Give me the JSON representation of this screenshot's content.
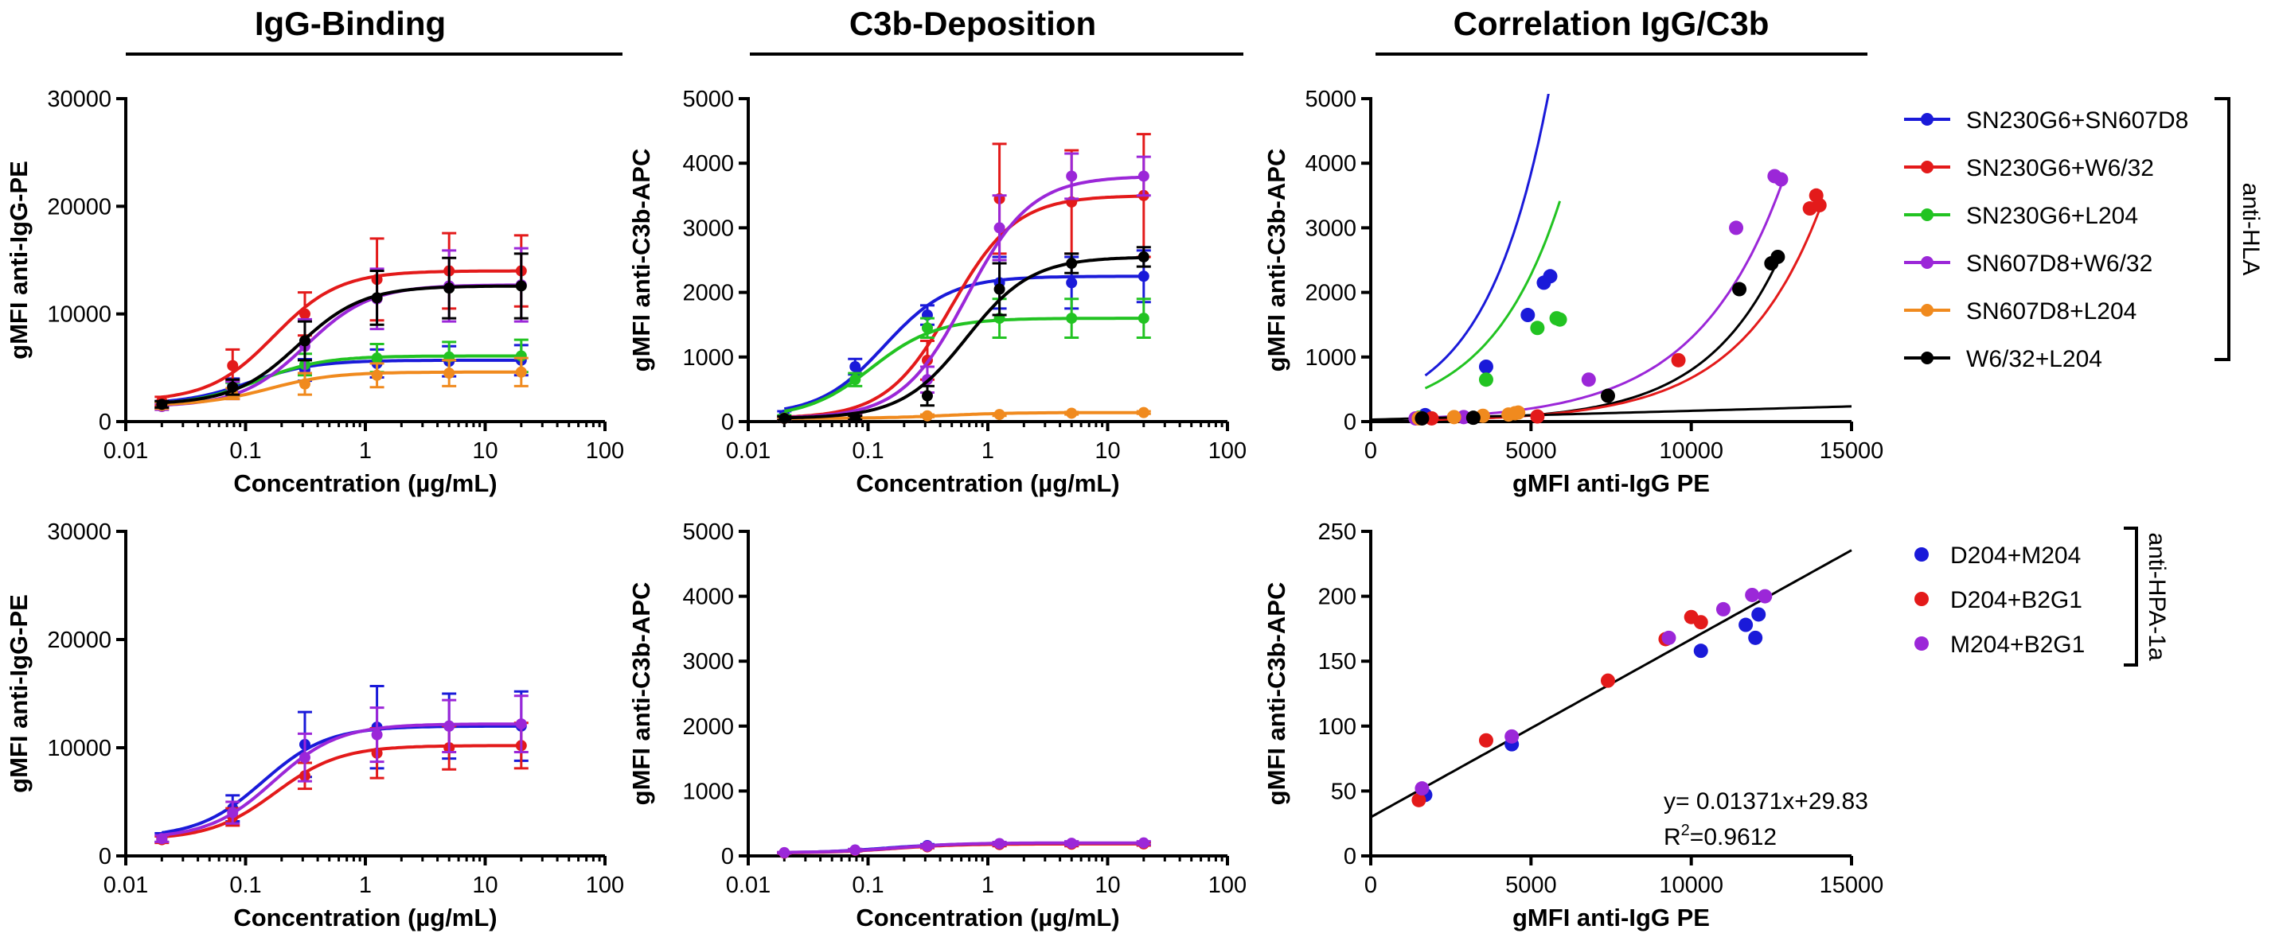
{
  "headers": [
    "IgG-Binding",
    "C3b-Deposition",
    "Correlation IgG/C3b"
  ],
  "legend_hla": {
    "group_label": "anti-HLA",
    "entries": [
      {
        "name": "SN230G6+SN607D8",
        "color": "#1a1ad9"
      },
      {
        "name": "SN230G6+W6/32",
        "color": "#e31a1a"
      },
      {
        "name": "SN230G6+L204",
        "color": "#22c322"
      },
      {
        "name": "SN607D8+W6/32",
        "color": "#9b27d8"
      },
      {
        "name": "SN607D8+L204",
        "color": "#f08a1e"
      },
      {
        "name": "W6/32+L204",
        "color": "#000000"
      }
    ]
  },
  "legend_hpa": {
    "group_label": "anti-HPA-1a",
    "entries": [
      {
        "name": "D204+M204",
        "color": "#1a1ad9"
      },
      {
        "name": "D204+B2G1",
        "color": "#e31a1a"
      },
      {
        "name": "M204+B2G1",
        "color": "#9b27d8"
      }
    ]
  },
  "chart_data": [
    {
      "id": "hla-igg",
      "type": "line",
      "xscale": "log",
      "xlim": [
        0.01,
        100
      ],
      "ylim": [
        0,
        30000
      ],
      "xticks": [
        "0.01",
        "0.1",
        "1",
        "10",
        "100"
      ],
      "yticks": [
        "0",
        "10000",
        "20000",
        "30000"
      ],
      "xlabel": "Concentration (µg/mL)",
      "ylabel": "gMFI anti-IgG-PE",
      "x": [
        0.02,
        0.078,
        0.3125,
        1.25,
        5,
        20
      ],
      "series": [
        {
          "name": "SN230G6+SN607D8",
          "color": "#1a1ad9",
          "values": [
            1600,
            3300,
            4800,
            5400,
            5600,
            5700
          ],
          "errors": [
            300,
            700,
            1000,
            1300,
            1400,
            1400
          ]
        },
        {
          "name": "SN230G6+W6/32",
          "color": "#e31a1a",
          "values": [
            1900,
            5200,
            10000,
            13200,
            14000,
            14000
          ],
          "errors": [
            400,
            1500,
            2000,
            3800,
            3500,
            3300
          ]
        },
        {
          "name": "SN230G6+L204",
          "color": "#22c322",
          "values": [
            1500,
            3000,
            5300,
            5900,
            6000,
            6100
          ],
          "errors": [
            300,
            600,
            1000,
            1300,
            1400,
            1500
          ]
        },
        {
          "name": "SN607D8+W6/32",
          "color": "#9b27d8",
          "values": [
            1400,
            2900,
            7000,
            11400,
            12600,
            12700
          ],
          "errors": [
            300,
            800,
            2500,
            2800,
            3300,
            3400
          ]
        },
        {
          "name": "SN607D8+L204",
          "color": "#f08a1e",
          "values": [
            1500,
            2600,
            3500,
            4300,
            4500,
            4600
          ],
          "errors": [
            300,
            500,
            1000,
            1100,
            1200,
            1300
          ]
        },
        {
          "name": "W6/32+L204",
          "color": "#000000",
          "values": [
            1600,
            3200,
            7500,
            11500,
            12400,
            12600
          ],
          "errors": [
            300,
            700,
            1800,
            2500,
            2800,
            3000
          ]
        }
      ]
    },
    {
      "id": "hla-c3b",
      "type": "line",
      "xscale": "log",
      "xlim": [
        0.01,
        100
      ],
      "ylim": [
        0,
        5000
      ],
      "xticks": [
        "0.01",
        "0.1",
        "1",
        "10",
        "100"
      ],
      "yticks": [
        "0",
        "1000",
        "2000",
        "3000",
        "4000",
        "5000"
      ],
      "xlabel": "Concentration (µg/mL)",
      "ylabel": "gMFI anti-C3b-APC",
      "x": [
        0.02,
        0.078,
        0.3125,
        1.25,
        5,
        20
      ],
      "series": [
        {
          "name": "SN230G6+SN607D8",
          "color": "#1a1ad9",
          "values": [
            100,
            850,
            1650,
            2150,
            2150,
            2250
          ],
          "errors": [
            60,
            120,
            150,
            400,
            400,
            400
          ]
        },
        {
          "name": "SN230G6+W6/32",
          "color": "#e31a1a",
          "values": [
            50,
            80,
            950,
            3450,
            3400,
            3500
          ],
          "errors": [
            30,
            50,
            300,
            850,
            800,
            950
          ]
        },
        {
          "name": "SN230G6+L204",
          "color": "#22c322",
          "values": [
            60,
            650,
            1450,
            1600,
            1600,
            1600
          ],
          "errors": [
            40,
            100,
            150,
            300,
            300,
            300
          ]
        },
        {
          "name": "SN607D8+W6/32",
          "color": "#9b27d8",
          "values": [
            50,
            70,
            650,
            3000,
            3800,
            3800
          ],
          "errors": [
            30,
            40,
            200,
            500,
            350,
            300
          ]
        },
        {
          "name": "SN607D8+L204",
          "color": "#f08a1e",
          "values": [
            50,
            70,
            90,
            110,
            130,
            140
          ],
          "errors": [
            20,
            20,
            20,
            20,
            20,
            20
          ]
        },
        {
          "name": "W6/32+L204",
          "color": "#000000",
          "values": [
            50,
            60,
            400,
            2050,
            2450,
            2550
          ],
          "errors": [
            30,
            30,
            150,
            400,
            150,
            150
          ]
        }
      ]
    },
    {
      "id": "hla-corr",
      "type": "scatter",
      "xlim": [
        0,
        15000
      ],
      "ylim": [
        0,
        5000
      ],
      "xticks": [
        "0",
        "5000",
        "10000",
        "15000"
      ],
      "yticks": [
        "0",
        "1000",
        "2000",
        "3000",
        "4000",
        "5000"
      ],
      "xlabel": "gMFI anti-IgG PE",
      "ylabel": "gMFI anti-C3b-APC",
      "series": [
        {
          "name": "SN230G6+SN607D8",
          "color": "#1a1ad9",
          "points": [
            [
              1700,
              100
            ],
            [
              3600,
              850
            ],
            [
              4900,
              1650
            ],
            [
              5400,
              2150
            ],
            [
              5600,
              2250
            ]
          ]
        },
        {
          "name": "SN230G6+W6/32",
          "color": "#e31a1a",
          "points": [
            [
              1900,
              50
            ],
            [
              5200,
              80
            ],
            [
              9600,
              950
            ],
            [
              13700,
              3300
            ],
            [
              13900,
              3500
            ],
            [
              14000,
              3350
            ]
          ]
        },
        {
          "name": "SN230G6+L204",
          "color": "#22c322",
          "points": [
            [
              1500,
              60
            ],
            [
              3600,
              650
            ],
            [
              5200,
              1450
            ],
            [
              5800,
              1600
            ],
            [
              5900,
              1580
            ]
          ]
        },
        {
          "name": "SN607D8+W6/32",
          "color": "#9b27d8",
          "points": [
            [
              1400,
              50
            ],
            [
              2900,
              70
            ],
            [
              6800,
              650
            ],
            [
              11400,
              3000
            ],
            [
              12600,
              3800
            ],
            [
              12800,
              3750
            ]
          ]
        },
        {
          "name": "SN607D8+L204",
          "color": "#f08a1e",
          "points": [
            [
              1500,
              50
            ],
            [
              2600,
              70
            ],
            [
              3500,
              90
            ],
            [
              4300,
              110
            ],
            [
              4500,
              130
            ],
            [
              4600,
              140
            ]
          ]
        },
        {
          "name": "W6/32+L204",
          "color": "#000000",
          "points": [
            [
              1600,
              50
            ],
            [
              3200,
              60
            ],
            [
              7400,
              400
            ],
            [
              11500,
              2050
            ],
            [
              12500,
              2450
            ],
            [
              12700,
              2550
            ]
          ]
        }
      ],
      "fits": [
        {
          "color": "#1a1ad9",
          "xrange": [
            1700,
            5600
          ],
          "form": "exp",
          "a": 300,
          "b": 0.00051
        },
        {
          "color": "#22c322",
          "xrange": [
            1700,
            5900
          ],
          "form": "exp",
          "a": 240,
          "b": 0.00045
        },
        {
          "color": "#9b27d8",
          "xrange": [
            1400,
            12900
          ],
          "form": "exp",
          "a": 32,
          "b": 0.00037
        },
        {
          "color": "#000000",
          "xrange": [
            1500,
            12800
          ],
          "form": "exp",
          "a": 12,
          "b": 0.00042
        },
        {
          "color": "#e31a1a",
          "xrange": [
            1600,
            14100
          ],
          "form": "exp",
          "a": 13,
          "b": 0.000395
        },
        {
          "color": "#000000",
          "xrange": [
            0,
            15000
          ],
          "form": "linear",
          "slope": 0.01371,
          "intercept": 29.83
        }
      ]
    },
    {
      "id": "hpa-igg",
      "type": "line",
      "xscale": "log",
      "xlim": [
        0.01,
        100
      ],
      "ylim": [
        0,
        30000
      ],
      "xticks": [
        "0.01",
        "0.1",
        "1",
        "10",
        "100"
      ],
      "yticks": [
        "0",
        "10000",
        "20000",
        "30000"
      ],
      "xlabel": "Concentration (µg/mL)",
      "ylabel": "gMFI anti-IgG-PE",
      "x": [
        0.02,
        0.078,
        0.3125,
        1.25,
        5,
        20
      ],
      "series": [
        {
          "name": "D204+M204",
          "color": "#1a1ad9",
          "values": [
            1700,
            4400,
            10300,
            11900,
            12000,
            12000
          ],
          "errors": [
            400,
            1200,
            3000,
            3800,
            3000,
            3200
          ]
        },
        {
          "name": "D204+B2G1",
          "color": "#e31a1a",
          "values": [
            1500,
            3600,
            7400,
            9500,
            10000,
            10200
          ],
          "errors": [
            300,
            800,
            1200,
            2300,
            2000,
            2100
          ]
        },
        {
          "name": "M204+B2G1",
          "color": "#9b27d8",
          "values": [
            1600,
            4000,
            9100,
            11200,
            12000,
            12200
          ],
          "errors": [
            300,
            1000,
            2200,
            2500,
            2400,
            2600
          ]
        }
      ]
    },
    {
      "id": "hpa-c3b",
      "type": "line",
      "xscale": "log",
      "xlim": [
        0.01,
        100
      ],
      "ylim": [
        0,
        5000
      ],
      "xticks": [
        "0.01",
        "0.1",
        "1",
        "10",
        "100"
      ],
      "yticks": [
        "0",
        "1000",
        "2000",
        "3000",
        "4000",
        "5000"
      ],
      "xlabel": "Concentration (µg/mL)",
      "ylabel": "gMFI anti-C3b-APC",
      "x": [
        0.02,
        0.078,
        0.3125,
        1.25,
        5,
        20
      ],
      "series": [
        {
          "name": "D204+M204",
          "color": "#1a1ad9",
          "values": [
            45,
            90,
            160,
            180,
            190,
            190
          ],
          "errors": [
            10,
            15,
            20,
            25,
            30,
            25
          ]
        },
        {
          "name": "D204+B2G1",
          "color": "#e31a1a",
          "values": [
            45,
            85,
            140,
            175,
            180,
            185
          ],
          "errors": [
            10,
            15,
            20,
            25,
            30,
            25
          ]
        },
        {
          "name": "M204+B2G1",
          "color": "#9b27d8",
          "values": [
            50,
            90,
            150,
            190,
            195,
            200
          ],
          "errors": [
            10,
            15,
            20,
            25,
            30,
            25
          ]
        }
      ]
    },
    {
      "id": "hpa-corr",
      "type": "scatter",
      "xlim": [
        0,
        15000
      ],
      "ylim": [
        0,
        250
      ],
      "xticks": [
        "0",
        "5000",
        "10000",
        "15000"
      ],
      "yticks": [
        "0",
        "50",
        "100",
        "150",
        "200",
        "250"
      ],
      "xlabel": "gMFI anti-IgG PE",
      "ylabel": "gMFI anti-C3b-APC",
      "series": [
        {
          "name": "D204+M204",
          "color": "#1a1ad9",
          "points": [
            [
              1700,
              47
            ],
            [
              4400,
              86
            ],
            [
              10300,
              158
            ],
            [
              11700,
              178
            ],
            [
              12000,
              168
            ],
            [
              12100,
              186
            ]
          ]
        },
        {
          "name": "D204+B2G1",
          "color": "#e31a1a",
          "points": [
            [
              1500,
              43
            ],
            [
              3600,
              89
            ],
            [
              7400,
              135
            ],
            [
              9200,
              167
            ],
            [
              10000,
              184
            ],
            [
              10300,
              180
            ]
          ]
        },
        {
          "name": "M204+B2G1",
          "color": "#9b27d8",
          "points": [
            [
              1600,
              52
            ],
            [
              4400,
              92
            ],
            [
              9300,
              168
            ],
            [
              11000,
              190
            ],
            [
              11900,
              201
            ],
            [
              12300,
              200
            ]
          ]
        }
      ],
      "fits": [
        {
          "color": "#000000",
          "xrange": [
            0,
            15000
          ],
          "form": "linear",
          "slope": 0.01371,
          "intercept": 29.83
        }
      ],
      "annotations": {
        "equation": "y= 0.01371x+29.83",
        "r2_prefix": "R",
        "r2_sup": "2",
        "r2_value": "=0.9612"
      }
    }
  ]
}
